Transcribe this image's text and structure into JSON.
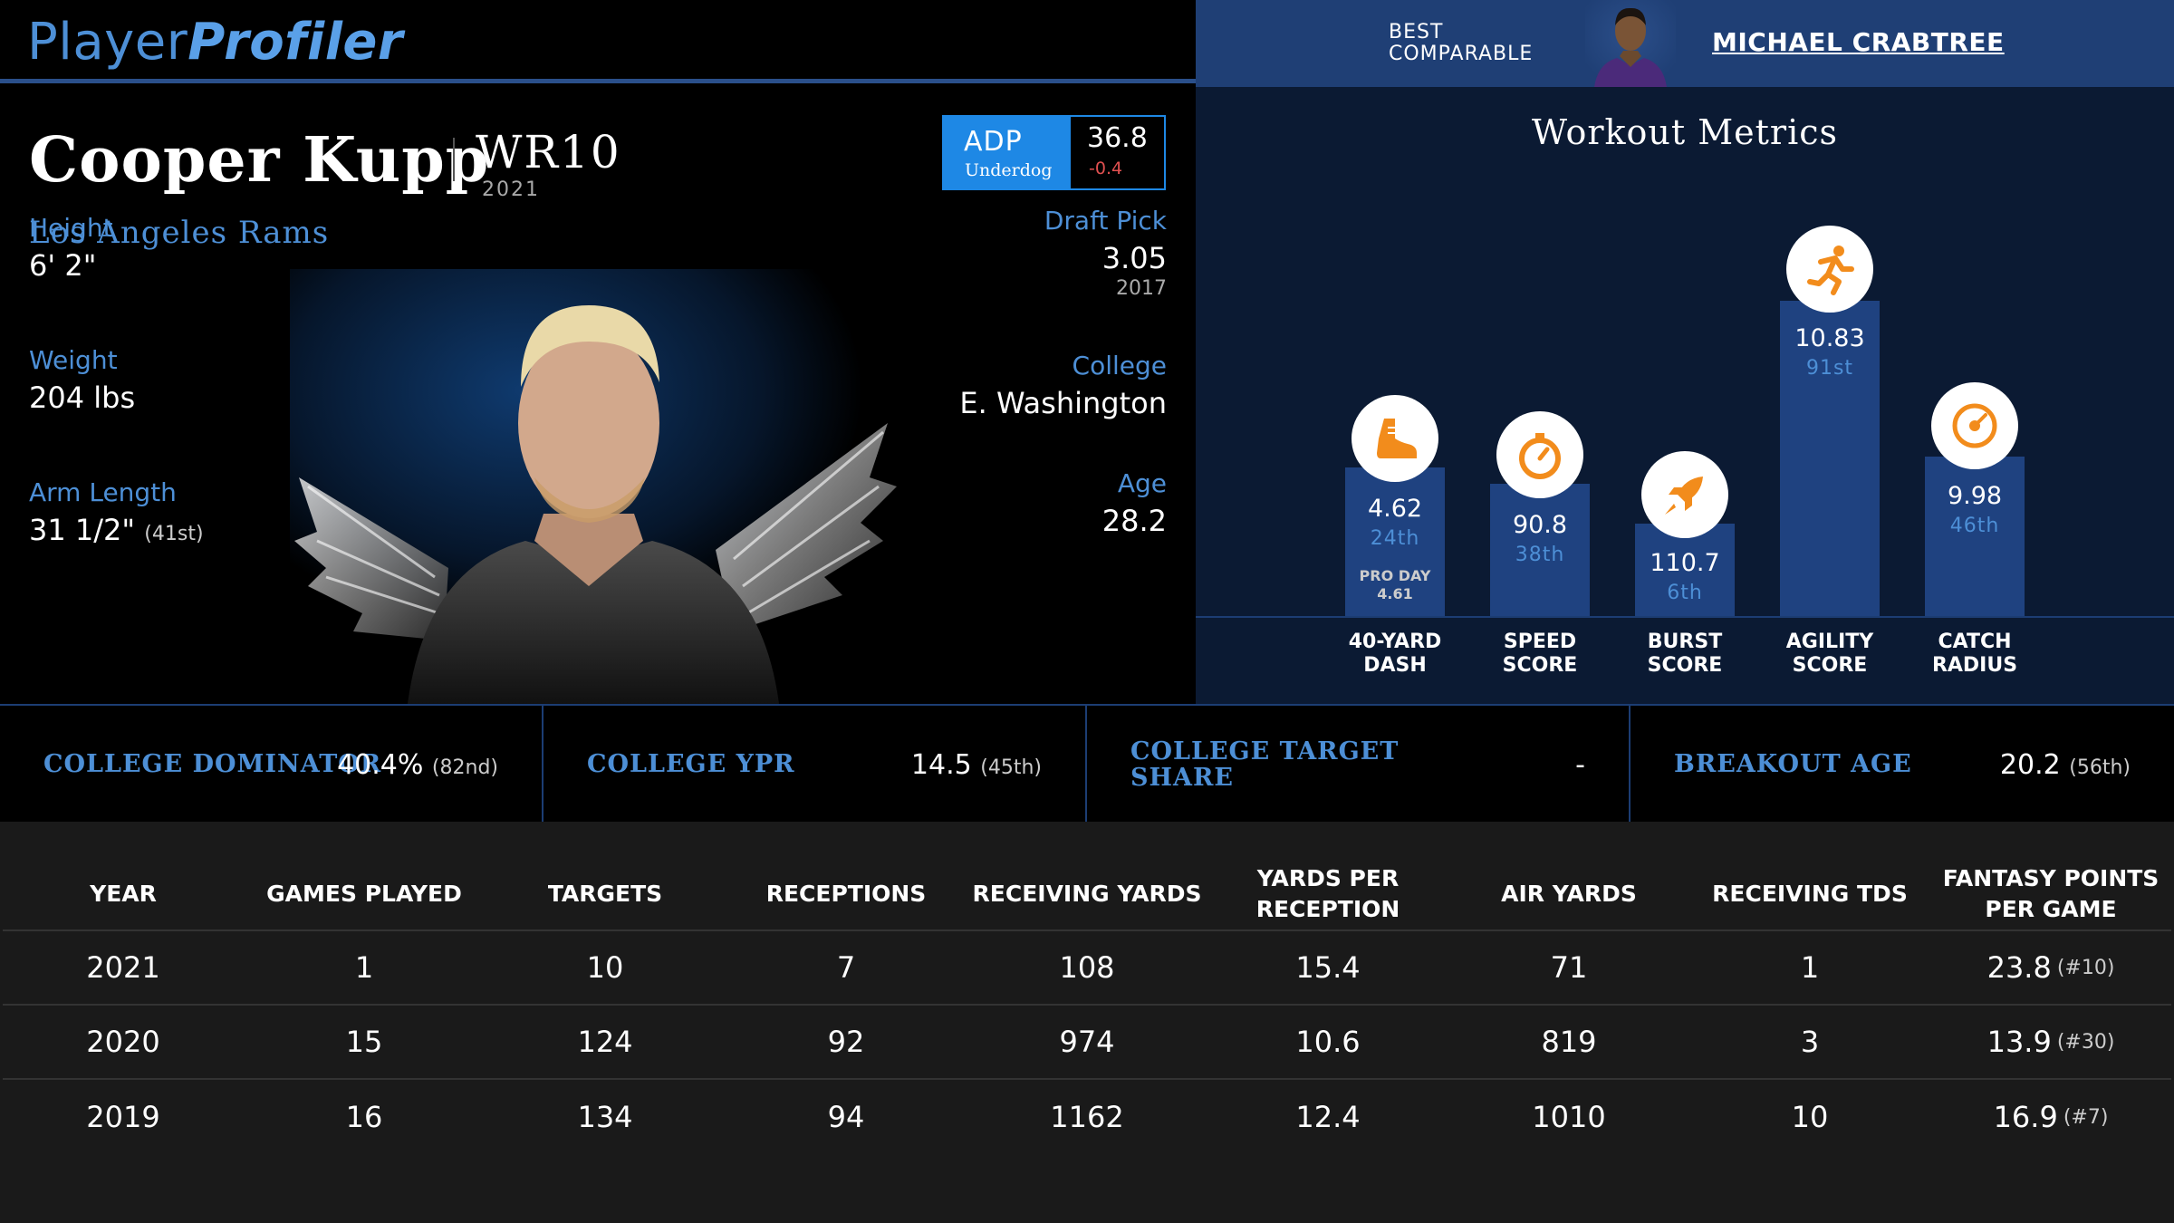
{
  "header": {
    "logo_part1": "Player",
    "logo_part2": "Profiler",
    "best_comparable_line1": "BEST",
    "best_comparable_line2": "COMPARABLE",
    "comparable_name": "MICHAEL CRABTREE"
  },
  "player": {
    "name": "Cooper Kupp",
    "rank": "WR10",
    "rank_year": "2021",
    "team": "Los Angeles Rams",
    "adp": {
      "label": "ADP",
      "source": "Underdog",
      "value": "36.8",
      "change": "-0.4"
    },
    "height": {
      "label": "Height",
      "value": "6' 2\""
    },
    "weight": {
      "label": "Weight",
      "value": "204 lbs"
    },
    "arm_length": {
      "label": "Arm Length",
      "value": "31 1/2\"",
      "rank": "(41st)"
    },
    "draft_pick": {
      "label": "Draft Pick",
      "value": "3.05",
      "year": "2017"
    },
    "college": {
      "label": "College",
      "value": "E. Washington"
    },
    "age": {
      "label": "Age",
      "value": "28.2"
    }
  },
  "workout": {
    "title": "Workout Metrics",
    "metrics": [
      {
        "key": "dash",
        "label1": "40-YARD",
        "label2": "DASH",
        "value": "4.62",
        "rank": "24th",
        "extra1": "PRO DAY",
        "extra2": "4.61",
        "percentile": 24,
        "icon": "shoe-icon"
      },
      {
        "key": "speed",
        "label1": "SPEED",
        "label2": "SCORE",
        "value": "90.8",
        "rank": "38th",
        "percentile": 38,
        "icon": "stopwatch-icon"
      },
      {
        "key": "burst",
        "label1": "BURST",
        "label2": "SCORE",
        "value": "110.7",
        "rank": "6th",
        "percentile": 6,
        "icon": "rocket-icon"
      },
      {
        "key": "agility",
        "label1": "AGILITY",
        "label2": "SCORE",
        "value": "10.83",
        "rank": "91st",
        "percentile": 91,
        "icon": "runner-icon"
      },
      {
        "key": "catch",
        "label1": "CATCH",
        "label2": "RADIUS",
        "value": "9.98",
        "rank": "46th",
        "percentile": 46,
        "icon": "target-icon"
      }
    ]
  },
  "college": {
    "dominator": {
      "label": "COLLEGE DOMINATOR",
      "value": "40.4%",
      "rank": "(82nd)"
    },
    "ypr": {
      "label": "COLLEGE YPR",
      "value": "14.5",
      "rank": "(45th)"
    },
    "target_share": {
      "label1": "COLLEGE TARGET",
      "label2": "SHARE",
      "value": "-"
    },
    "breakout_age": {
      "label": "BREAKOUT AGE",
      "value": "20.2",
      "rank": "(56th)"
    }
  },
  "stats_table": {
    "headers": [
      "YEAR",
      "GAMES PLAYED",
      "TARGETS",
      "RECEPTIONS",
      "RECEIVING YARDS",
      "YARDS PER RECEPTION",
      "AIR YARDS",
      "RECEIVING TDS",
      "FANTASY POINTS PER GAME"
    ],
    "rows": [
      [
        "2021",
        "1",
        "10",
        "7",
        "108",
        "15.4",
        "71",
        "1",
        "23.8",
        "(#10)"
      ],
      [
        "2020",
        "15",
        "124",
        "92",
        "974",
        "10.6",
        "819",
        "3",
        "13.9",
        "(#30)"
      ],
      [
        "2019",
        "16",
        "134",
        "94",
        "1162",
        "12.4",
        "1010",
        "10",
        "16.9",
        "(#7)"
      ]
    ]
  },
  "colors": {
    "accent_blue": "#4d8fd6",
    "adp_blue": "#1e88e5",
    "bar_blue": "#1f4280",
    "icon_orange": "#f28c1c",
    "negative_red": "#e05050"
  }
}
